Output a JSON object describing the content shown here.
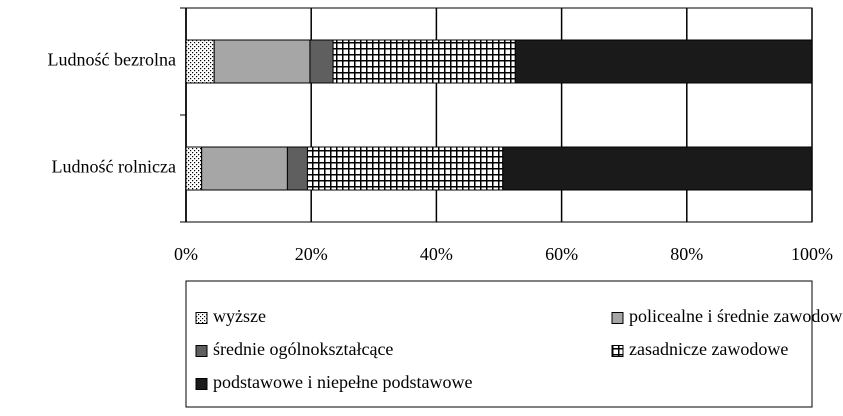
{
  "chart_data": {
    "type": "stacked-bar-horizontal",
    "categories": [
      "Ludność bezrolna",
      "Ludność rolnicza"
    ],
    "series": [
      {
        "name": "wyższe",
        "color": "#ffffff",
        "pattern": "dots",
        "values": [
          4.5,
          2.5
        ]
      },
      {
        "name": "policealne i średnie zawodowe",
        "color": "#a6a6a6",
        "values": [
          15.3,
          13.7
        ]
      },
      {
        "name": "średnie ogólnokształcące",
        "color": "#5f5f5f",
        "values": [
          3.7,
          3.2
        ]
      },
      {
        "name": "zasadnicze zawodowe",
        "color": "#ffffff",
        "pattern": "grid",
        "values": [
          29.1,
          31.2
        ]
      },
      {
        "name": "podstawowe i niepełne podstawowe",
        "color": "#1a1a1a",
        "values": [
          47.4,
          49.4
        ]
      }
    ],
    "xlim": [
      0,
      100
    ],
    "xticks": [
      {
        "value": 0,
        "label": "0%"
      },
      {
        "value": 20,
        "label": "20%"
      },
      {
        "value": 40,
        "label": "40%"
      },
      {
        "value": 60,
        "label": "60%"
      },
      {
        "value": 80,
        "label": "80%"
      },
      {
        "value": 100,
        "label": "100%"
      }
    ],
    "grid": true,
    "legend": "bottom"
  }
}
